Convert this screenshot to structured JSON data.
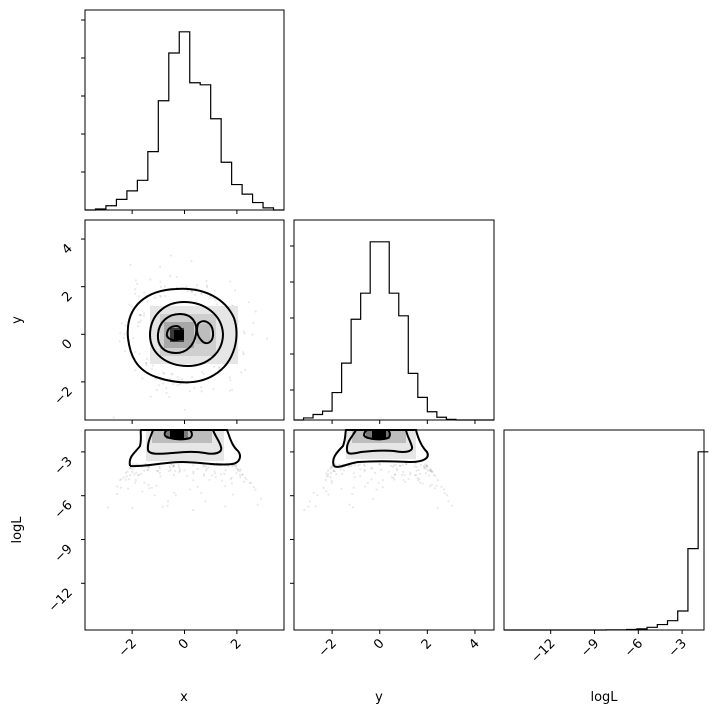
{
  "chart_data": {
    "type": "corner",
    "title": "",
    "grid": false,
    "parameters": [
      {
        "name": "x",
        "label": "x",
        "range": [
          -3.8,
          3.8
        ],
        "ticks": [
          -2,
          0,
          2
        ],
        "tick_labels": [
          "−2",
          "0",
          "2"
        ]
      },
      {
        "name": "y",
        "label": "y",
        "range": [
          -3.6,
          4.8
        ],
        "ticks": [
          -2,
          0,
          2,
          4
        ],
        "tick_labels": [
          "−2",
          "0",
          "2",
          "4"
        ]
      },
      {
        "name": "logL",
        "label": "logL",
        "range": [
          -15.2,
          -1.5
        ],
        "ticks": [
          -12,
          -9,
          -6,
          -3
        ],
        "tick_labels": [
          "−12",
          "−9",
          "−6",
          "−3"
        ]
      }
    ],
    "histograms": {
      "x": {
        "edges": [
          -3.8,
          -3.4,
          -3.0,
          -2.6,
          -2.2,
          -1.8,
          -1.4,
          -1.0,
          -0.6,
          -0.2,
          0.2,
          0.6,
          1.0,
          1.4,
          1.8,
          2.2,
          2.6,
          3.0,
          3.4,
          3.8
        ],
        "counts": [
          0,
          1,
          4,
          10,
          18,
          28,
          55,
          103,
          148,
          168,
          120,
          118,
          86,
          45,
          24,
          15,
          7,
          2,
          0
        ]
      },
      "y": {
        "edges": [
          -3.6,
          -3.2,
          -2.8,
          -2.4,
          -2.0,
          -1.6,
          -1.2,
          -0.8,
          -0.4,
          0.0,
          0.4,
          0.8,
          1.2,
          1.6,
          2.0,
          2.4,
          2.8,
          3.2,
          3.6,
          4.0,
          4.4,
          4.8
        ],
        "counts": [
          0,
          3,
          8,
          13,
          40,
          83,
          147,
          185,
          260,
          260,
          185,
          152,
          68,
          33,
          12,
          4,
          1,
          0,
          0,
          0,
          0
        ]
      },
      "logL": {
        "edges": [
          -15.2,
          -14.5,
          -13.8,
          -13.1,
          -12.4,
          -11.7,
          -11.0,
          -10.3,
          -9.6,
          -8.9,
          -8.2,
          -7.5,
          -6.8,
          -6.1,
          -5.4,
          -4.7,
          -4.0,
          -3.3,
          -2.6,
          -1.9,
          -1.2
        ],
        "counts": [
          0,
          0,
          0,
          0,
          0,
          0,
          0,
          0,
          0,
          0,
          1,
          1,
          3,
          6,
          14,
          28,
          48,
          98,
          420,
          920
        ]
      }
    },
    "pairs": [
      {
        "x": "x",
        "y": "y",
        "contour_levels": [
          0.39,
          0.86,
          0.99
        ],
        "mode": [
          -0.2,
          0.0
        ]
      },
      {
        "x": "x",
        "y": "logL",
        "contour_levels": [
          0.39,
          0.86,
          0.99
        ],
        "mode": [
          -0.2,
          -2.0
        ]
      },
      {
        "x": "y",
        "y": "logL",
        "contour_levels": [
          0.39,
          0.86,
          0.99
        ],
        "mode": [
          0.0,
          -2.0
        ]
      }
    ]
  }
}
